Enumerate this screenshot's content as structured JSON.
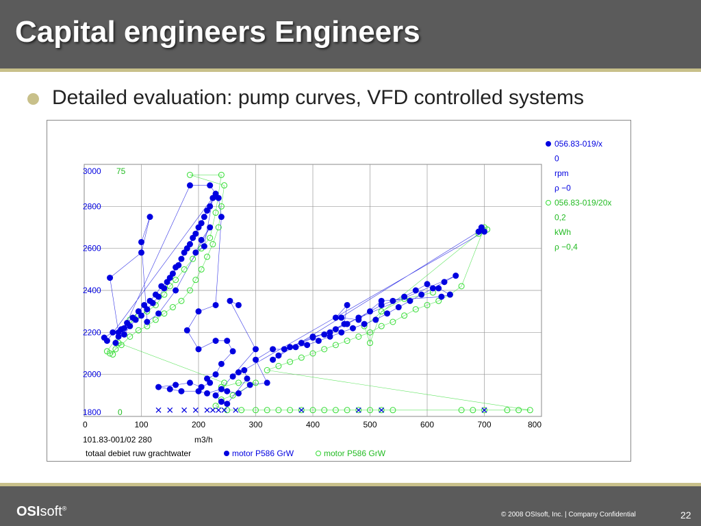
{
  "slide": {
    "title": "Capital engineers Engineers",
    "bullet": "Detailed evaluation: pump curves, VFD controlled systems",
    "footer_logo_bold": "OSI",
    "footer_logo_rest": "soft",
    "footer_logo_mark": "®",
    "copyright": "© 2008 OSIsoft, Inc.  |  Company Confidential",
    "slide_number": "22"
  },
  "colors": {
    "blue_series": "#0000e0",
    "green_series": "#33dd33",
    "title_bar": "#5b5b5b",
    "accent": "#c8c08a"
  },
  "chart_data": {
    "type": "scatter",
    "xlim": [
      0,
      800
    ],
    "ylim": [
      1800,
      3000
    ],
    "x_ticks": [
      0,
      100,
      200,
      300,
      400,
      500,
      600,
      700,
      800
    ],
    "y_ticks": [
      1800,
      2000,
      2200,
      2400,
      2600,
      2800,
      3000
    ],
    "y_tick_labels": [
      "1800",
      "2000",
      "2200",
      "2400",
      "2600",
      "2800",
      "3000"
    ],
    "y2_labels": {
      "top": "75",
      "bottom": "0"
    },
    "x_info": {
      "tag": "101.83-001/02 280",
      "unit": "m3/h"
    },
    "x_axis_name": "totaal debiet ruw grachtwater",
    "grid": true,
    "legend_position": "top-right",
    "legend": [
      {
        "tag": "056.83-019/x",
        "value": "0",
        "unit": "rpm",
        "rho": "ρ −0"
      },
      {
        "tag": "056.83-019/20x",
        "value": "0,2",
        "unit": "kWh",
        "rho": "ρ −0,4"
      }
    ],
    "series": [
      {
        "name": "motor P586 GrW",
        "marker": "filled-circle",
        "color": "#0000e0",
        "points": [
          [
            55,
            2150
          ],
          [
            60,
            2180
          ],
          [
            70,
            2190
          ],
          [
            80,
            2230
          ],
          [
            90,
            2260
          ],
          [
            100,
            2280
          ],
          [
            110,
            2310
          ],
          [
            120,
            2340
          ],
          [
            130,
            2370
          ],
          [
            140,
            2410
          ],
          [
            150,
            2460
          ],
          [
            160,
            2510
          ],
          [
            170,
            2550
          ],
          [
            180,
            2600
          ],
          [
            190,
            2650
          ],
          [
            200,
            2700
          ],
          [
            210,
            2750
          ],
          [
            220,
            2800
          ],
          [
            230,
            2860
          ],
          [
            40,
            2160
          ],
          [
            35,
            2175
          ],
          [
            50,
            2200
          ],
          [
            65,
            2215
          ],
          [
            75,
            2245
          ],
          [
            85,
            2270
          ],
          [
            95,
            2300
          ],
          [
            105,
            2330
          ],
          [
            115,
            2350
          ],
          [
            125,
            2380
          ],
          [
            135,
            2420
          ],
          [
            145,
            2440
          ],
          [
            155,
            2480
          ],
          [
            165,
            2520
          ],
          [
            175,
            2580
          ],
          [
            185,
            2620
          ],
          [
            195,
            2670
          ],
          [
            205,
            2720
          ],
          [
            215,
            2780
          ],
          [
            225,
            2840
          ],
          [
            210,
            2610
          ],
          [
            195,
            2580
          ],
          [
            205,
            2640
          ],
          [
            220,
            2700
          ],
          [
            160,
            2400
          ],
          [
            130,
            2290
          ],
          [
            110,
            2250
          ],
          [
            100,
            2630
          ],
          [
            115,
            2750
          ],
          [
            100,
            2580
          ],
          [
            45,
            2460
          ],
          [
            60,
            2200
          ],
          [
            70,
            2220
          ],
          [
            185,
            2900
          ],
          [
            220,
            2900
          ],
          [
            235,
            2840
          ],
          [
            240,
            2750
          ],
          [
            230,
            2330
          ],
          [
            200,
            2300
          ],
          [
            180,
            2210
          ],
          [
            200,
            2120
          ],
          [
            230,
            2160
          ],
          [
            250,
            2160
          ],
          [
            260,
            2110
          ],
          [
            240,
            2050
          ],
          [
            230,
            2000
          ],
          [
            215,
            1980
          ],
          [
            220,
            1960
          ],
          [
            205,
            1940
          ],
          [
            185,
            1960
          ],
          [
            160,
            1950
          ],
          [
            130,
            1940
          ],
          [
            150,
            1930
          ],
          [
            170,
            1920
          ],
          [
            200,
            1920
          ],
          [
            215,
            1910
          ],
          [
            240,
            1930
          ],
          [
            250,
            1920
          ],
          [
            270,
            1910
          ],
          [
            290,
            1950
          ],
          [
            320,
            1960
          ],
          [
            300,
            2070
          ],
          [
            330,
            2120
          ],
          [
            350,
            2120
          ],
          [
            370,
            2130
          ],
          [
            390,
            2140
          ],
          [
            410,
            2160
          ],
          [
            430,
            2180
          ],
          [
            450,
            2200
          ],
          [
            470,
            2220
          ],
          [
            490,
            2240
          ],
          [
            510,
            2260
          ],
          [
            530,
            2290
          ],
          [
            550,
            2320
          ],
          [
            570,
            2350
          ],
          [
            590,
            2380
          ],
          [
            610,
            2410
          ],
          [
            630,
            2440
          ],
          [
            650,
            2470
          ],
          [
            380,
            2150
          ],
          [
            400,
            2175
          ],
          [
            420,
            2190
          ],
          [
            440,
            2215
          ],
          [
            460,
            2240
          ],
          [
            480,
            2270
          ],
          [
            500,
            2300
          ],
          [
            520,
            2330
          ],
          [
            540,
            2350
          ],
          [
            560,
            2370
          ],
          [
            580,
            2400
          ],
          [
            600,
            2430
          ],
          [
            620,
            2410
          ],
          [
            640,
            2380
          ],
          [
            625,
            2370
          ],
          [
            520,
            2350
          ],
          [
            480,
            2260
          ],
          [
            450,
            2270
          ],
          [
            440,
            2270
          ],
          [
            460,
            2330
          ],
          [
            455,
            2240
          ],
          [
            430,
            2200
          ],
          [
            400,
            2180
          ],
          [
            360,
            2130
          ],
          [
            340,
            2090
          ],
          [
            330,
            2070
          ],
          [
            690,
            2680
          ],
          [
            695,
            2700
          ],
          [
            700,
            2680
          ],
          [
            260,
            1990
          ],
          [
            270,
            2010
          ],
          [
            280,
            2020
          ],
          [
            285,
            1980
          ],
          [
            250,
            1860
          ],
          [
            240,
            1870
          ],
          [
            230,
            1900
          ],
          [
            300,
            2120
          ],
          [
            255,
            2350
          ],
          [
            270,
            2330
          ]
        ]
      },
      {
        "name": "motor P586 GrW",
        "marker": "open-circle",
        "color": "#33dd33",
        "points": [
          [
            45,
            2100
          ],
          [
            55,
            2120
          ],
          [
            65,
            2140
          ],
          [
            80,
            2180
          ],
          [
            95,
            2210
          ],
          [
            110,
            2230
          ],
          [
            125,
            2260
          ],
          [
            140,
            2290
          ],
          [
            155,
            2320
          ],
          [
            170,
            2350
          ],
          [
            185,
            2400
          ],
          [
            195,
            2450
          ],
          [
            205,
            2500
          ],
          [
            215,
            2560
          ],
          [
            225,
            2620
          ],
          [
            235,
            2700
          ],
          [
            240,
            2800
          ],
          [
            245,
            2900
          ],
          [
            185,
            2950
          ],
          [
            240,
            2950
          ],
          [
            230,
            2770
          ],
          [
            220,
            2650
          ],
          [
            205,
            2600
          ],
          [
            190,
            2550
          ],
          [
            175,
            2500
          ],
          [
            160,
            2450
          ],
          [
            150,
            2420
          ],
          [
            140,
            2380
          ],
          [
            125,
            2330
          ],
          [
            110,
            2300
          ],
          [
            95,
            2280
          ],
          [
            80,
            2260
          ],
          [
            40,
            2110
          ],
          [
            50,
            2095
          ],
          [
            60,
            2150
          ],
          [
            245,
            1960
          ],
          [
            240,
            1940
          ],
          [
            270,
            1960
          ],
          [
            300,
            1960
          ],
          [
            260,
            1900
          ],
          [
            240,
            1880
          ],
          [
            230,
            1850
          ],
          [
            250,
            1830
          ],
          [
            275,
            1830
          ],
          [
            300,
            1830
          ],
          [
            320,
            1830
          ],
          [
            340,
            1830
          ],
          [
            360,
            1830
          ],
          [
            380,
            1830
          ],
          [
            400,
            1830
          ],
          [
            420,
            1830
          ],
          [
            440,
            1830
          ],
          [
            460,
            1830
          ],
          [
            480,
            1830
          ],
          [
            500,
            1830
          ],
          [
            520,
            1830
          ],
          [
            540,
            1830
          ],
          [
            660,
            1830
          ],
          [
            680,
            1830
          ],
          [
            700,
            1830
          ],
          [
            740,
            1830
          ],
          [
            760,
            1830
          ],
          [
            780,
            1830
          ],
          [
            320,
            2020
          ],
          [
            340,
            2040
          ],
          [
            360,
            2060
          ],
          [
            380,
            2080
          ],
          [
            400,
            2100
          ],
          [
            420,
            2120
          ],
          [
            440,
            2140
          ],
          [
            460,
            2160
          ],
          [
            480,
            2180
          ],
          [
            500,
            2200
          ],
          [
            520,
            2230
          ],
          [
            540,
            2250
          ],
          [
            560,
            2280
          ],
          [
            580,
            2310
          ],
          [
            600,
            2330
          ],
          [
            620,
            2350
          ],
          [
            640,
            2380
          ],
          [
            660,
            2420
          ],
          [
            700,
            2700
          ],
          [
            705,
            2690
          ],
          [
            690,
            2670
          ],
          [
            490,
            2230
          ],
          [
            500,
            2150
          ],
          [
            520,
            2300
          ],
          [
            560,
            2360
          ],
          [
            610,
            2390
          ]
        ]
      },
      {
        "name": "",
        "marker": "x",
        "color": "#0000e0",
        "points": [
          [
            130,
            1830
          ],
          [
            150,
            1830
          ],
          [
            175,
            1830
          ],
          [
            195,
            1830
          ],
          [
            215,
            1830
          ],
          [
            225,
            1830
          ],
          [
            235,
            1830
          ],
          [
            245,
            1830
          ],
          [
            265,
            1830
          ],
          [
            380,
            1830
          ],
          [
            480,
            1830
          ],
          [
            520,
            1830
          ],
          [
            700,
            1830
          ]
        ]
      }
    ]
  }
}
